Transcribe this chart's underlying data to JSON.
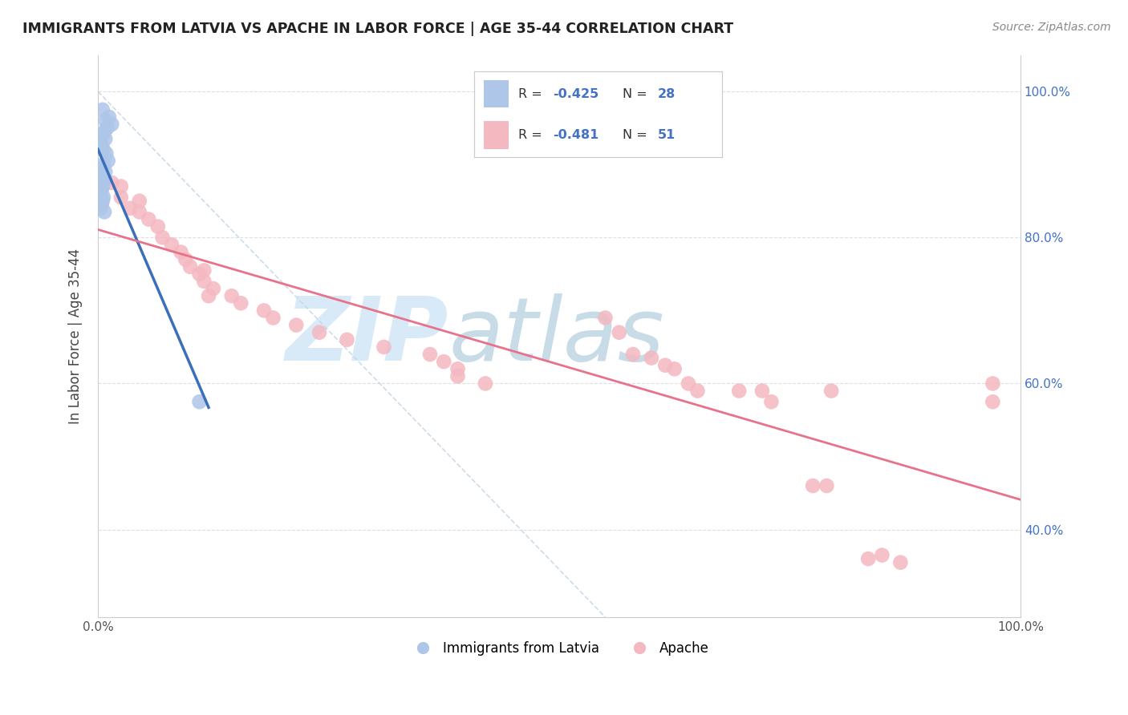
{
  "title": "IMMIGRANTS FROM LATVIA VS APACHE IN LABOR FORCE | AGE 35-44 CORRELATION CHART",
  "source": "Source: ZipAtlas.com",
  "ylabel": "In Labor Force | Age 35-44",
  "xlim": [
    0.0,
    1.0
  ],
  "ylim_low": 0.28,
  "ylim_high": 1.05,
  "y_ticks": [
    0.4,
    0.6,
    0.8,
    1.0
  ],
  "y_tick_labels": [
    "40.0%",
    "60.0%",
    "80.0%",
    "100.0%"
  ],
  "legend_r1": "-0.425",
  "legend_n1": "28",
  "legend_r2": "-0.481",
  "legend_n2": "51",
  "blue_scatter_color": "#aec6e8",
  "pink_scatter_color": "#f4b8c1",
  "blue_line_color": "#3a6fba",
  "pink_line_color": "#e8728a",
  "ref_line_color": "#c8d8e8",
  "watermark_zip_color": "#d8eaf8",
  "watermark_atlas_color": "#c8d8e8",
  "latvia_x": [
    0.005,
    0.012,
    0.008,
    0.015,
    0.01,
    0.007,
    0.005,
    0.008,
    0.003,
    0.004,
    0.006,
    0.009,
    0.011,
    0.006,
    0.005,
    0.008,
    0.004,
    0.007,
    0.006,
    0.005,
    0.004,
    0.003,
    0.006,
    0.005,
    0.004,
    0.11,
    0.003,
    0.007
  ],
  "latvia_y": [
    0.975,
    0.965,
    0.96,
    0.955,
    0.95,
    0.945,
    0.94,
    0.935,
    0.93,
    0.925,
    0.92,
    0.915,
    0.905,
    0.9,
    0.895,
    0.89,
    0.885,
    0.88,
    0.875,
    0.87,
    0.865,
    0.86,
    0.855,
    0.85,
    0.845,
    0.575,
    0.84,
    0.835
  ],
  "apache_x": [
    0.005,
    0.015,
    0.025,
    0.025,
    0.035,
    0.045,
    0.045,
    0.055,
    0.065,
    0.07,
    0.08,
    0.09,
    0.095,
    0.1,
    0.11,
    0.115,
    0.115,
    0.125,
    0.12,
    0.145,
    0.155,
    0.18,
    0.19,
    0.215,
    0.24,
    0.27,
    0.31,
    0.36,
    0.375,
    0.39,
    0.39,
    0.42,
    0.55,
    0.565,
    0.58,
    0.6,
    0.615,
    0.625,
    0.64,
    0.65,
    0.695,
    0.72,
    0.73,
    0.775,
    0.79,
    0.795,
    0.835,
    0.85,
    0.87,
    0.97,
    0.97
  ],
  "apache_y": [
    0.87,
    0.875,
    0.87,
    0.855,
    0.84,
    0.835,
    0.85,
    0.825,
    0.815,
    0.8,
    0.79,
    0.78,
    0.77,
    0.76,
    0.75,
    0.755,
    0.74,
    0.73,
    0.72,
    0.72,
    0.71,
    0.7,
    0.69,
    0.68,
    0.67,
    0.66,
    0.65,
    0.64,
    0.63,
    0.62,
    0.61,
    0.6,
    0.69,
    0.67,
    0.64,
    0.635,
    0.625,
    0.62,
    0.6,
    0.59,
    0.59,
    0.59,
    0.575,
    0.46,
    0.46,
    0.59,
    0.36,
    0.365,
    0.355,
    0.6,
    0.575
  ],
  "background_color": "#ffffff",
  "grid_color": "#d8d8d8"
}
